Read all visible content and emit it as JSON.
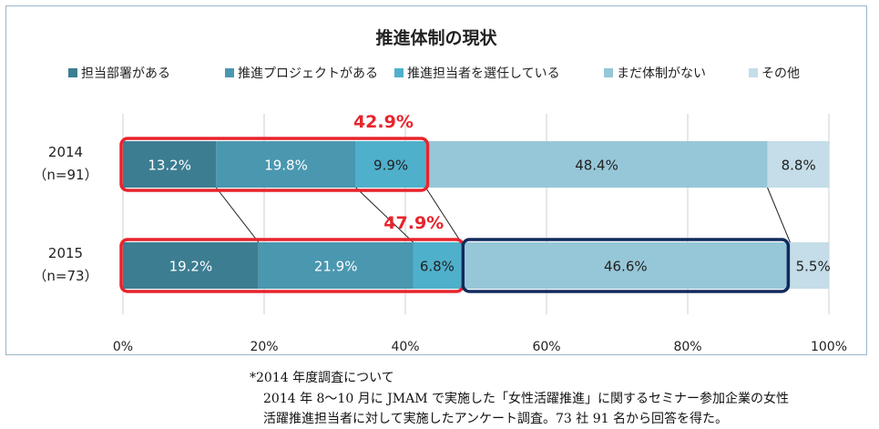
{
  "chart_data": {
    "type": "bar",
    "orientation": "horizontal",
    "stacked": "percent",
    "title": "推進体制の現状",
    "categories": [
      {
        "year": "2014",
        "n": "（n=91）"
      },
      {
        "year": "2015",
        "n": "（n=73）"
      }
    ],
    "series": [
      {
        "name": "担当部署がある",
        "color": "#3c7d92",
        "values": [
          13.2,
          19.2
        ],
        "labels": [
          "13.2%",
          "19.2%"
        ]
      },
      {
        "name": "推進プロジェクトがある",
        "color": "#4a97b0",
        "values": [
          19.8,
          21.9
        ],
        "labels": [
          "19.8%",
          "21.9%"
        ]
      },
      {
        "name": "推進担当者を選任している",
        "color": "#4fb0cc",
        "values": [
          9.9,
          6.8
        ],
        "labels": [
          "9.9%",
          "6.8%"
        ]
      },
      {
        "name": "まだ体制がない",
        "color": "#96c7d8",
        "values": [
          48.4,
          46.6
        ],
        "labels": [
          "48.4%",
          "46.6%"
        ]
      },
      {
        "name": "その他",
        "color": "#c4dde8",
        "values": [
          8.8,
          5.5
        ],
        "labels": [
          "8.8%",
          "5.5%"
        ]
      }
    ],
    "xlim": [
      0,
      100
    ],
    "x_ticks": [
      "0%",
      "20%",
      "40%",
      "60%",
      "80%",
      "100%"
    ],
    "legend_position": "top",
    "grid": "vertical",
    "annotations": [
      {
        "text": "42.9%",
        "category": 0,
        "value": 42.9,
        "color": "#e8242c"
      },
      {
        "text": "47.9%",
        "category": 1,
        "value": 47.9,
        "color": "#e8242c"
      }
    ],
    "highlight_colors": {
      "red": "#e8242c",
      "navy": "#102a5c"
    }
  },
  "footnote": {
    "heading": "*2014 年度調査について",
    "line1": "2014 年 8～10 月に JMAM で実施した「女性活躍推進」に関するセミナー参加企業の女性",
    "line2": "活躍推進担当者に対して実施したアンケート調査。73 社 91 名から回答を得た。"
  }
}
